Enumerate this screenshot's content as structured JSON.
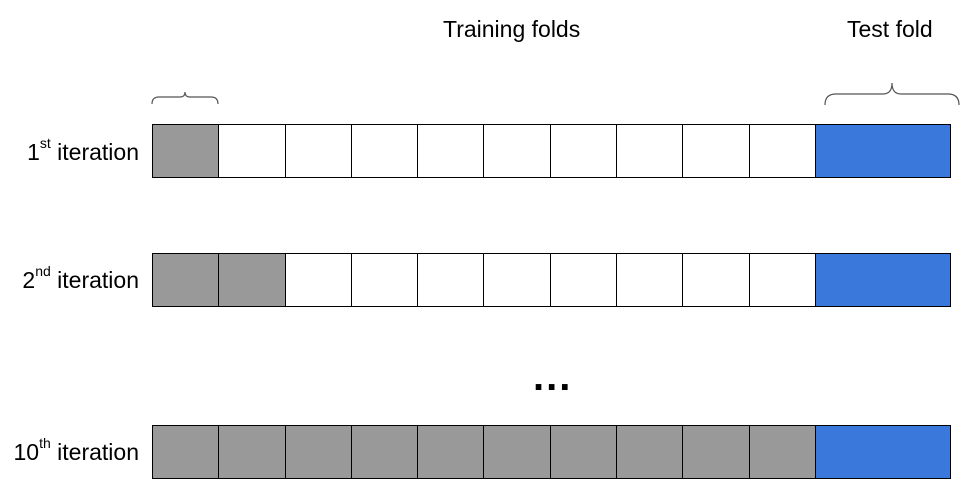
{
  "headings": {
    "training": "Training folds",
    "test": "Test fold"
  },
  "ellipsis": "...",
  "colors": {
    "grey_fold": "#999999",
    "training_fold": "#ffffff",
    "test_fold": "#3b78dc"
  },
  "rows": [
    {
      "num": "1",
      "suffix": "st",
      "word": " iteration",
      "grey_count": 1,
      "white_count": 9
    },
    {
      "num": "2",
      "suffix": "nd",
      "word": " iteration",
      "grey_count": 2,
      "white_count": 8
    },
    {
      "num": "10",
      "suffix": "th",
      "word": " iteration",
      "grey_count": 10,
      "white_count": 0
    }
  ]
}
